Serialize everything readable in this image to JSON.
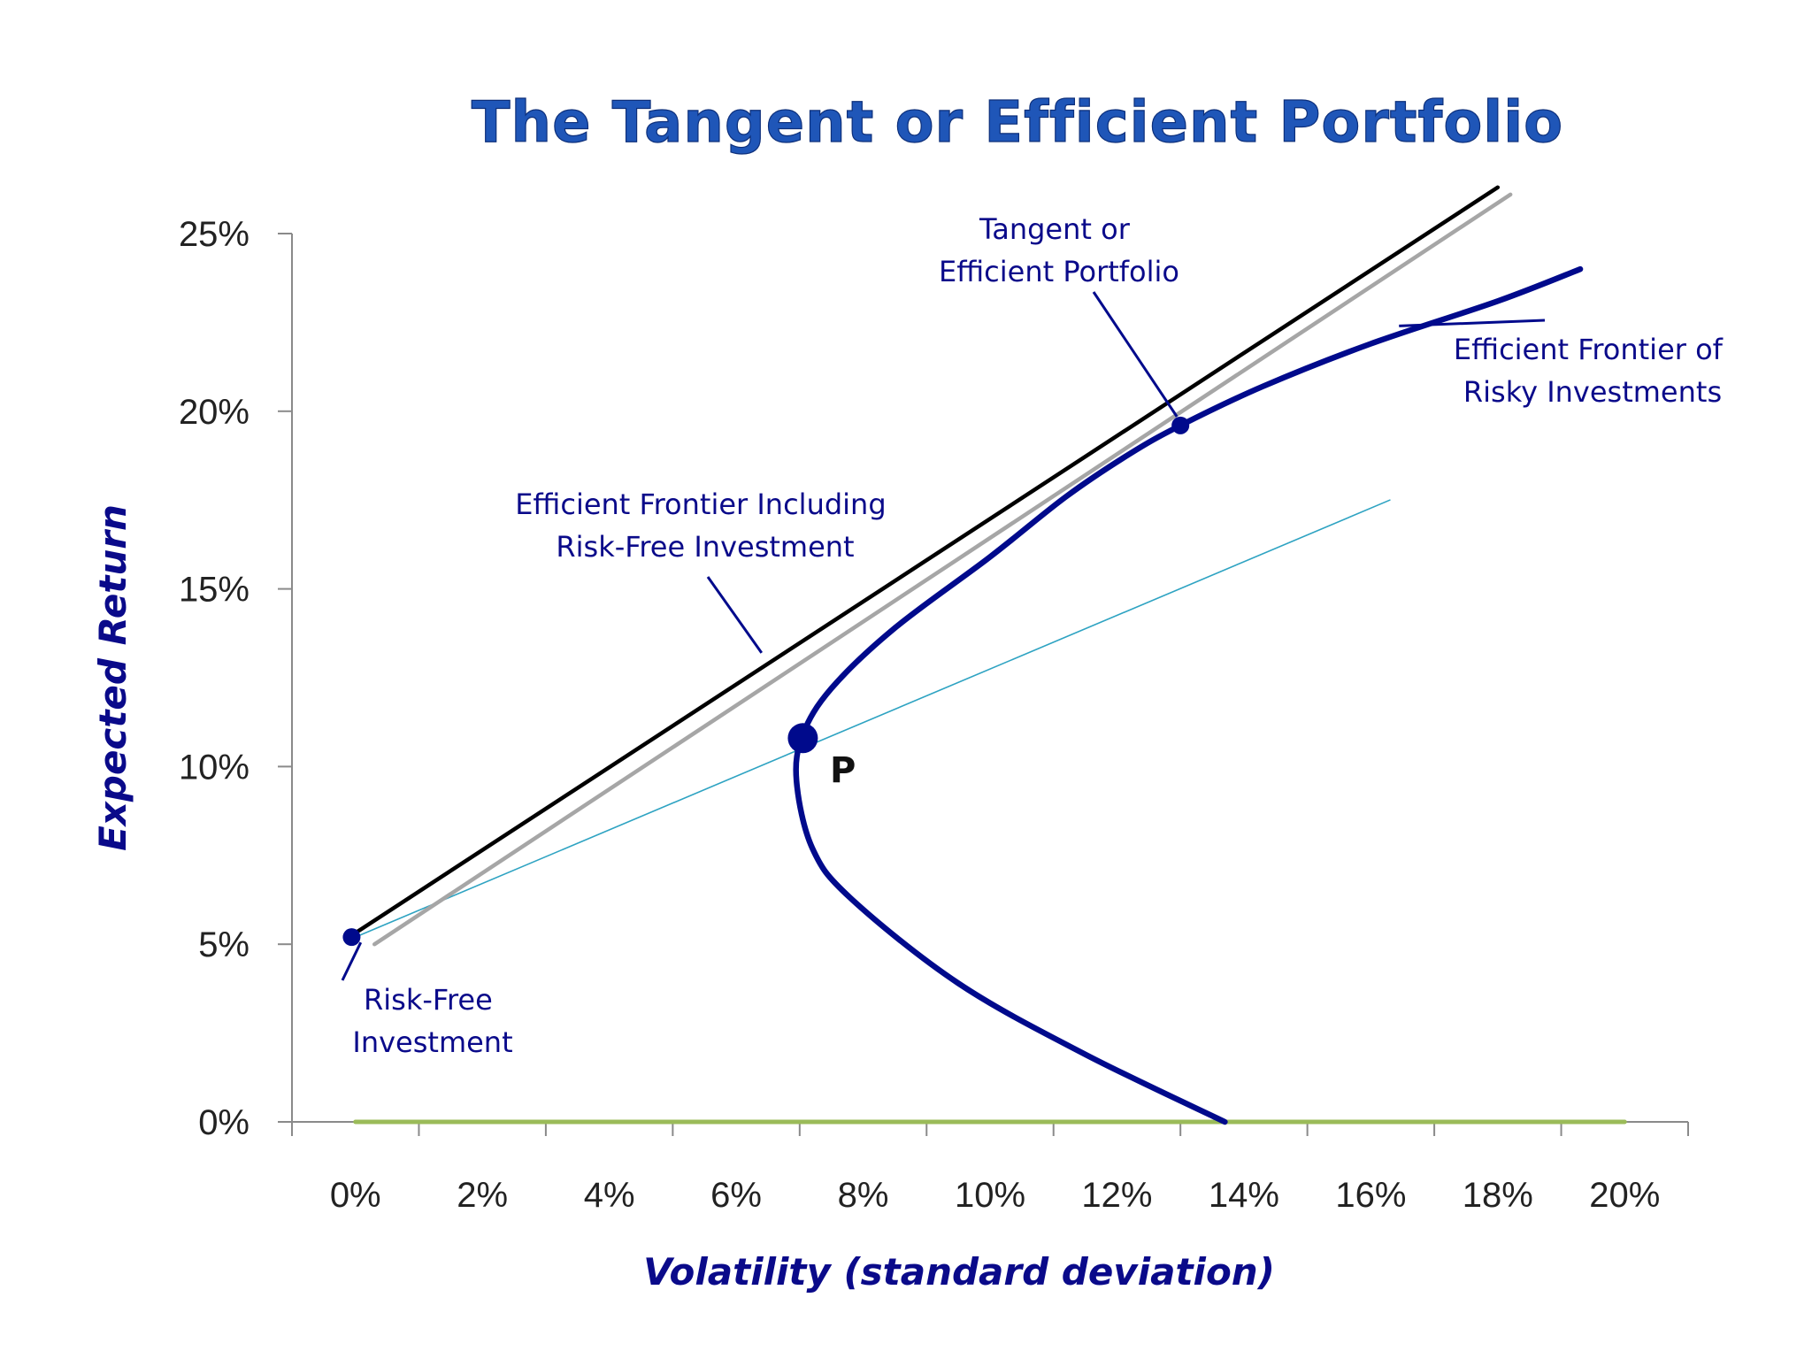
{
  "chart_data": {
    "type": "line",
    "title": "The Tangent or Efficient Portfolio",
    "xlabel": "Volatility (standard deviation)",
    "ylabel": "Expected Return",
    "xlim": [
      -1,
      21
    ],
    "ylim": [
      0,
      25
    ],
    "x_ticks": [
      {
        "value": 0,
        "label": "0%"
      },
      {
        "value": 2,
        "label": "2%"
      },
      {
        "value": 4,
        "label": "4%"
      },
      {
        "value": 6,
        "label": "6%"
      },
      {
        "value": 8,
        "label": "8%"
      },
      {
        "value": 10,
        "label": "10%"
      },
      {
        "value": 12,
        "label": "12%"
      },
      {
        "value": 14,
        "label": "14%"
      },
      {
        "value": 16,
        "label": "16%"
      },
      {
        "value": 18,
        "label": "18%"
      },
      {
        "value": 20,
        "label": "20%"
      }
    ],
    "y_ticks": [
      {
        "value": 0,
        "label": "0%"
      },
      {
        "value": 5,
        "label": "5%"
      },
      {
        "value": 10,
        "label": "10%"
      },
      {
        "value": 15,
        "label": "15%"
      },
      {
        "value": 20,
        "label": "20%"
      },
      {
        "value": 25,
        "label": "25%"
      }
    ],
    "grid": false,
    "series": [
      {
        "key": "frontier",
        "color": "#000a8c",
        "points": [
          [
            13.7,
            0
          ],
          [
            11.5,
            1.9
          ],
          [
            9.5,
            3.9
          ],
          [
            7.8,
            6.3
          ],
          [
            7.2,
            7.7
          ],
          [
            6.95,
            9.6
          ],
          [
            7.05,
            10.9
          ],
          [
            7.5,
            12.2
          ],
          [
            8.5,
            13.9
          ],
          [
            10.0,
            15.9
          ],
          [
            11.2,
            17.6
          ],
          [
            12.2,
            18.8
          ],
          [
            13.0,
            19.6
          ],
          [
            14.3,
            20.7
          ],
          [
            16.0,
            21.9
          ],
          [
            18.0,
            23.1
          ],
          [
            19.3,
            24.0
          ]
        ]
      },
      {
        "key": "cml_black",
        "color": "#000000",
        "points": [
          [
            -0.1,
            5.2
          ],
          [
            18.0,
            26.3
          ]
        ]
      },
      {
        "key": "cml_gray",
        "color": "#a6a6a6",
        "points": [
          [
            0.3,
            5.0
          ],
          [
            18.2,
            26.1
          ]
        ]
      },
      {
        "key": "cal_p",
        "color": "#2ea3c2",
        "points": [
          [
            0.0,
            5.2
          ],
          [
            16.3,
            17.5
          ]
        ]
      },
      {
        "key": "zero_line",
        "color": "#9bbb59",
        "points": [
          [
            0.0,
            0.0
          ],
          [
            20.0,
            0.0
          ]
        ]
      }
    ],
    "points": [
      {
        "key": "risk_free",
        "x": -0.06,
        "y": 5.2,
        "label": ""
      },
      {
        "key": "tangent",
        "x": 13.0,
        "y": 19.6,
        "label": ""
      },
      {
        "key": "p",
        "x": 7.05,
        "y": 10.8,
        "label": "P"
      }
    ],
    "annotations": [
      {
        "key": "tangent_ann",
        "lines": [
          "Tangent or",
          "Efficient Portfolio"
        ],
        "target": [
          13.0,
          19.6
        ]
      },
      {
        "key": "frontier_ann",
        "lines": [
          "Efficient Frontier of",
          "Risky Investments"
        ],
        "target": [
          16.5,
          22.3
        ]
      },
      {
        "key": "cml_ann",
        "lines": [
          "Efficient Frontier Including",
          "Risk-Free Investment"
        ],
        "target": [
          6.4,
          13.2
        ]
      },
      {
        "key": "rf_ann",
        "lines": [
          "Risk-Free",
          "Investment"
        ],
        "target": [
          0.0,
          5.2
        ]
      }
    ]
  }
}
